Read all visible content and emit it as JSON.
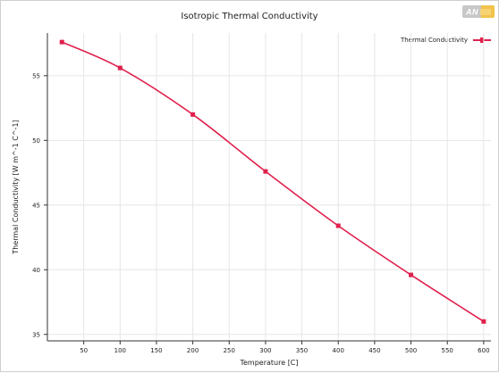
{
  "chart_data": {
    "type": "line",
    "title": "Isotropic Thermal Conductivity",
    "xlabel": "Temperature [C]",
    "ylabel": "Thermal Conductivity [W m^-1 C^-1]",
    "x_ticks": [
      50,
      100,
      150,
      200,
      250,
      300,
      350,
      400,
      450,
      500,
      550,
      600
    ],
    "y_ticks": [
      35,
      40,
      45,
      50,
      55
    ],
    "xlim": [
      0,
      610
    ],
    "ylim": [
      34.5,
      58.3
    ],
    "grid": true,
    "legend_position": "top-right",
    "series": [
      {
        "name": "Thermal Conductivity",
        "color": "#e0204c",
        "x": [
          20,
          100,
          200,
          300,
          400,
          500,
          600
        ],
        "y": [
          57.6,
          55.6,
          52.0,
          47.6,
          43.4,
          39.6,
          36.0
        ]
      }
    ]
  },
  "brand": {
    "logo_text": "ANSYS"
  }
}
